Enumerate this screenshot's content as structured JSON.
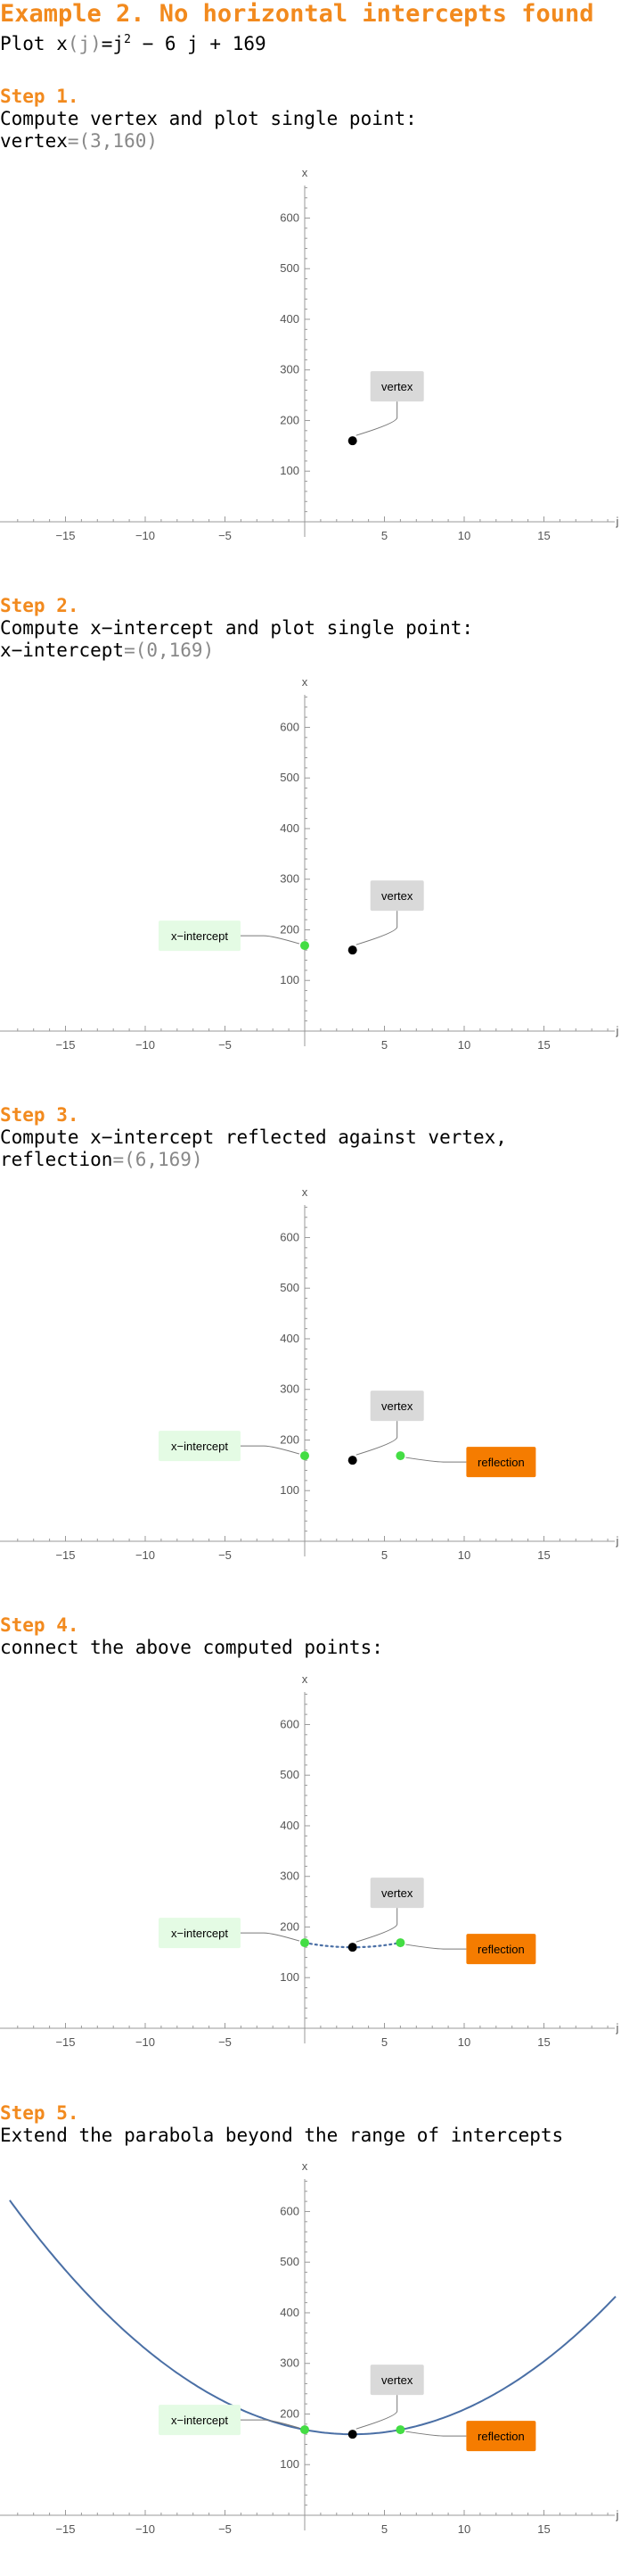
{
  "header": {
    "title": "Example 2. No horizontal intercepts found",
    "plot_prefix": "Plot x",
    "plot_arg": "(j)",
    "plot_eq": "=j",
    "plot_exp": "2",
    "plot_rest": " − 6 j + 169"
  },
  "steps": [
    {
      "label": "Step 1.",
      "line1": "Compute vertex and plot single point:",
      "line2_name": "vertex",
      "line2_value": "=(3,160)"
    },
    {
      "label": "Step 2.",
      "line1": "Compute x−intercept and plot single point:",
      "line2_name": "x−intercept",
      "line2_value": "=(0,169)"
    },
    {
      "label": "Step 3.",
      "line1": "Compute x−intercept reflected against vertex,",
      "line2_name": "reflection",
      "line2_value": "=(6,169)"
    },
    {
      "label": "Step 4.",
      "line1": "connect the above computed points:",
      "line2_name": "",
      "line2_value": ""
    },
    {
      "label": "Step 5.",
      "line1": "Extend the parabola beyond the range of intercepts",
      "line2_name": "",
      "line2_value": ""
    }
  ],
  "colors": {
    "accent": "#f28a1e",
    "vertex_point": "#000000",
    "intercept_point": "#44dd44",
    "curve": "#4a6fa5",
    "vertex_label_bg": "#d9d9d9",
    "intercept_label_bg": "#e4fbe4",
    "reflection_label_bg": "#f57c00"
  },
  "chart_data": [
    {
      "type": "scatter",
      "xlabel": "j",
      "ylabel": "x",
      "xlim": [
        -19,
        19.5
      ],
      "ylim": [
        -30,
        700
      ],
      "xticks": [
        -15,
        -10,
        -5,
        5,
        10,
        15
      ],
      "yticks": [
        100,
        200,
        300,
        400,
        500,
        600
      ],
      "points": [
        {
          "name": "vertex",
          "x": 3,
          "y": 160
        }
      ],
      "curve": null
    },
    {
      "type": "scatter",
      "xlabel": "j",
      "ylabel": "x",
      "xlim": [
        -19,
        19.5
      ],
      "ylim": [
        -30,
        700
      ],
      "xticks": [
        -15,
        -10,
        -5,
        5,
        10,
        15
      ],
      "yticks": [
        100,
        200,
        300,
        400,
        500,
        600
      ],
      "points": [
        {
          "name": "vertex",
          "x": 3,
          "y": 160
        },
        {
          "name": "x−intercept",
          "x": 0,
          "y": 169
        }
      ],
      "curve": null
    },
    {
      "type": "scatter",
      "xlabel": "j",
      "ylabel": "x",
      "xlim": [
        -19,
        19.5
      ],
      "ylim": [
        -30,
        700
      ],
      "xticks": [
        -15,
        -10,
        -5,
        5,
        10,
        15
      ],
      "yticks": [
        100,
        200,
        300,
        400,
        500,
        600
      ],
      "points": [
        {
          "name": "vertex",
          "x": 3,
          "y": 160
        },
        {
          "name": "x−intercept",
          "x": 0,
          "y": 169
        },
        {
          "name": "reflection",
          "x": 6,
          "y": 169
        }
      ],
      "curve": null
    },
    {
      "type": "line",
      "xlabel": "j",
      "ylabel": "x",
      "xlim": [
        -19,
        19.5
      ],
      "ylim": [
        -30,
        700
      ],
      "xticks": [
        -15,
        -10,
        -5,
        5,
        10,
        15
      ],
      "yticks": [
        100,
        200,
        300,
        400,
        500,
        600
      ],
      "points": [
        {
          "name": "vertex",
          "x": 3,
          "y": 160
        },
        {
          "name": "x−intercept",
          "x": 0,
          "y": 169
        },
        {
          "name": "reflection",
          "x": 6,
          "y": 169
        }
      ],
      "curve": {
        "expression": "j^2 − 6 j + 169",
        "a": 1,
        "b": -6,
        "c": 169,
        "from": 0,
        "to": 6,
        "style": "dotted"
      }
    },
    {
      "type": "line",
      "xlabel": "j",
      "ylabel": "x",
      "xlim": [
        -19,
        19.5
      ],
      "ylim": [
        -30,
        700
      ],
      "xticks": [
        -15,
        -10,
        -5,
        5,
        10,
        15
      ],
      "yticks": [
        100,
        200,
        300,
        400,
        500,
        600
      ],
      "points": [
        {
          "name": "vertex",
          "x": 3,
          "y": 160
        },
        {
          "name": "x−intercept",
          "x": 0,
          "y": 169
        },
        {
          "name": "reflection",
          "x": 6,
          "y": 169
        }
      ],
      "curve": {
        "expression": "j^2 − 6 j + 169",
        "a": 1,
        "b": -6,
        "c": 169,
        "from": -18.5,
        "to": 19.5,
        "style": "solid"
      }
    }
  ]
}
